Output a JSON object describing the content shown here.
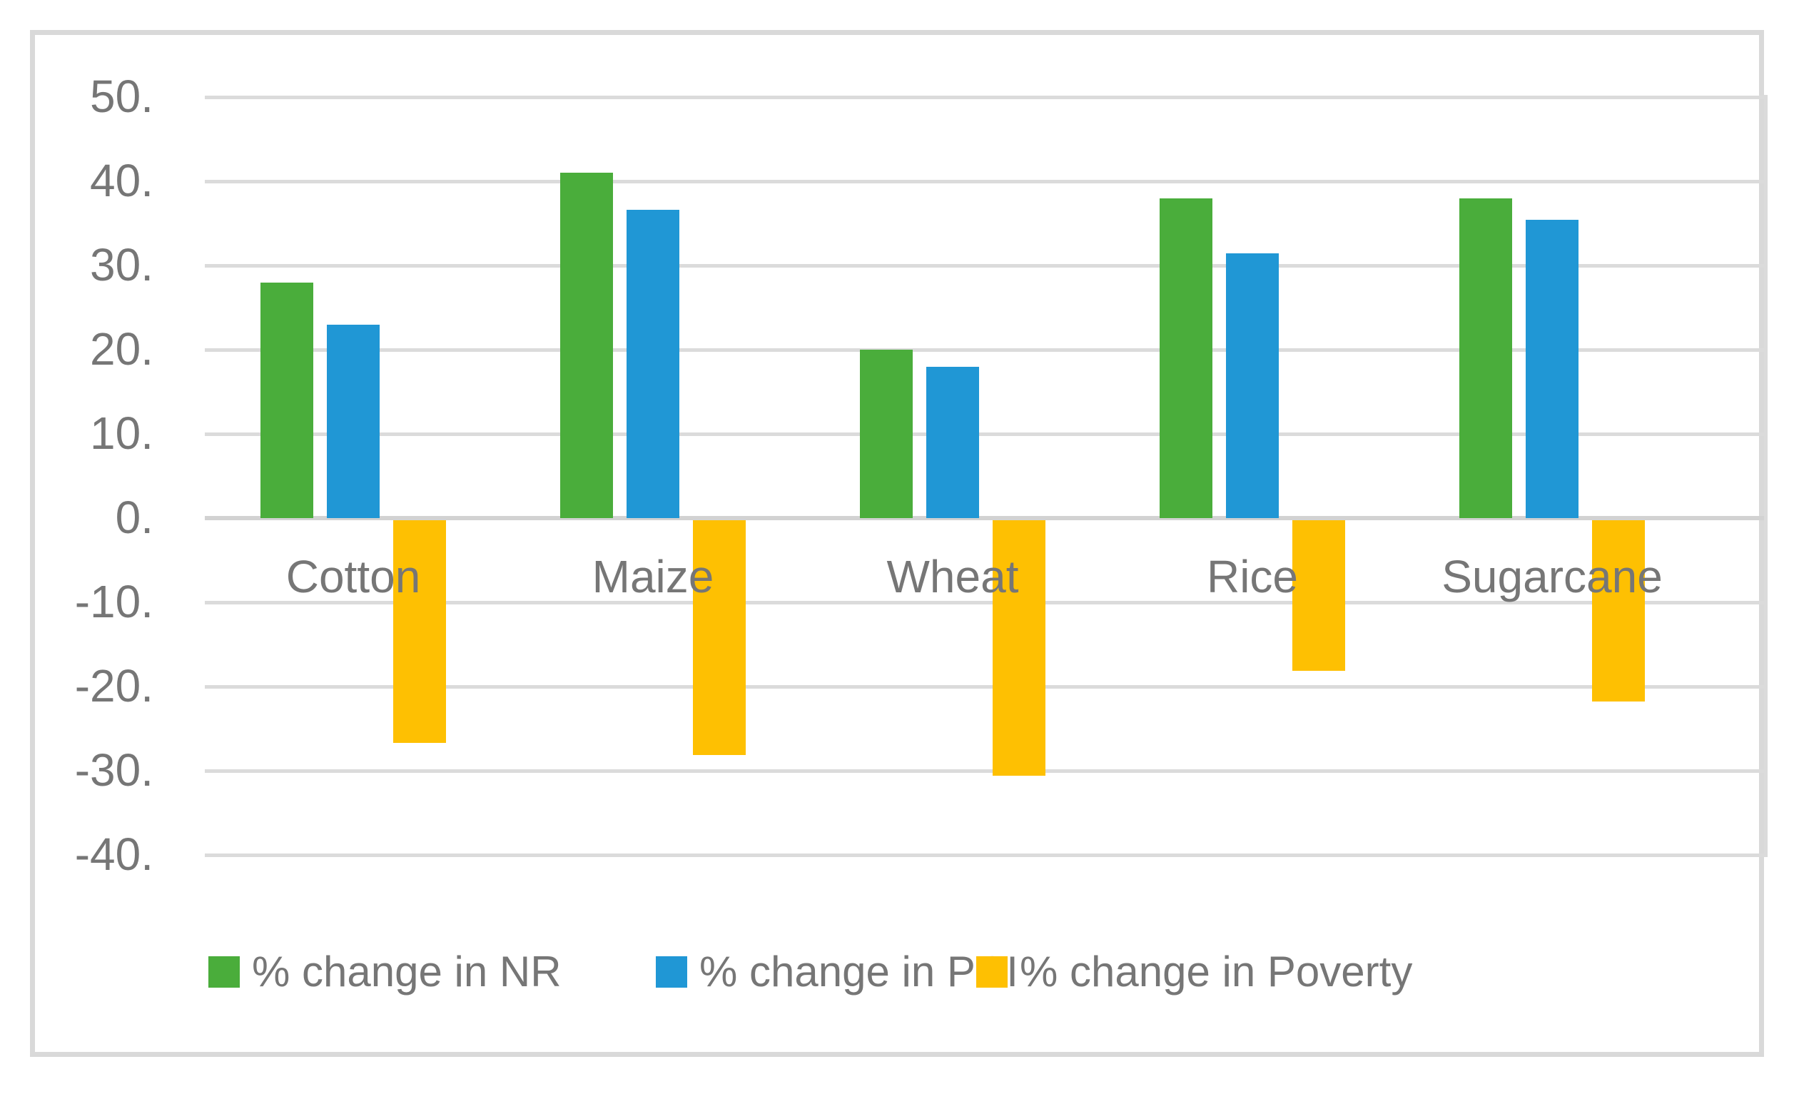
{
  "figure": {
    "background": "#ffffff",
    "frame_border_color": "#d9d9d9",
    "grid_color": "#dbdbdb",
    "axis_line_color": "#d2d2d2",
    "text_color": "#767676"
  },
  "chart_data": {
    "type": "bar",
    "title": "",
    "xlabel": "",
    "ylabel": "",
    "categories": [
      "Cotton",
      "Maize",
      "Wheat",
      "Rice",
      "Sugarcane"
    ],
    "series": [
      {
        "name": "% change in NR",
        "color": "#4aad3b",
        "values": [
          28,
          41,
          20,
          38,
          38
        ]
      },
      {
        "name": "% change in PCI",
        "color": "#2097d5",
        "values": [
          23,
          36.6,
          18,
          31.4,
          35.4
        ]
      },
      {
        "name": "% change in Poverty",
        "color": "#fec002",
        "values": [
          -26.4,
          -27.9,
          -30.3,
          -17.9,
          -21.5
        ]
      }
    ],
    "y_axis": {
      "min": -40,
      "max": 50,
      "step": 10,
      "tick_labels": [
        "50.",
        "40.",
        "30.",
        "20.",
        "10.",
        "0.",
        "-10.",
        "-20.",
        "-30.",
        "-40."
      ]
    },
    "grid": true,
    "legend_position": "bottom"
  }
}
